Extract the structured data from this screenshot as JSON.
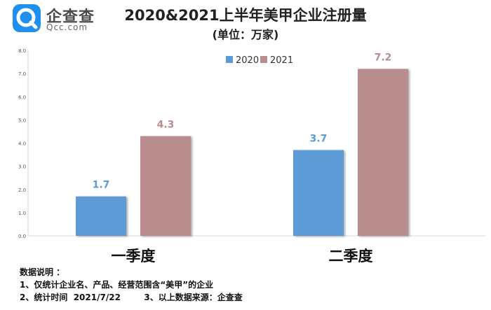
{
  "brand": {
    "name": "企查查",
    "sub": "Qcc.com"
  },
  "colors": {
    "series_2020": "#5b9bd5",
    "series_2021": "#b98c8d",
    "axis": "#d9d9d9"
  },
  "chart_data": {
    "type": "bar",
    "title": "2020&2021上半年美甲企业注册量",
    "subtitle": "(单位：万家)",
    "categories": [
      "一季度",
      "二季度"
    ],
    "series": [
      {
        "name": "2020",
        "values": [
          1.7,
          3.7
        ],
        "color": "#5b9bd5"
      },
      {
        "name": "2021",
        "values": [
          4.3,
          7.2
        ],
        "color": "#b98c8d"
      }
    ],
    "ylim": [
      0,
      8
    ],
    "yticks": [
      "0.0",
      "1.0",
      "2.0",
      "3.0",
      "4.0",
      "5.0",
      "6.0",
      "7.0",
      "8.0"
    ],
    "grid": false,
    "legend": "top-right",
    "data_labels": true
  },
  "notes": {
    "heading": "数据说明 ：",
    "line1": "1、仅统计企业名、产品、经营范围含“美甲”的企业",
    "line2": "2、统计时间  2021/7/22        3、以上数据来源：企查查"
  }
}
